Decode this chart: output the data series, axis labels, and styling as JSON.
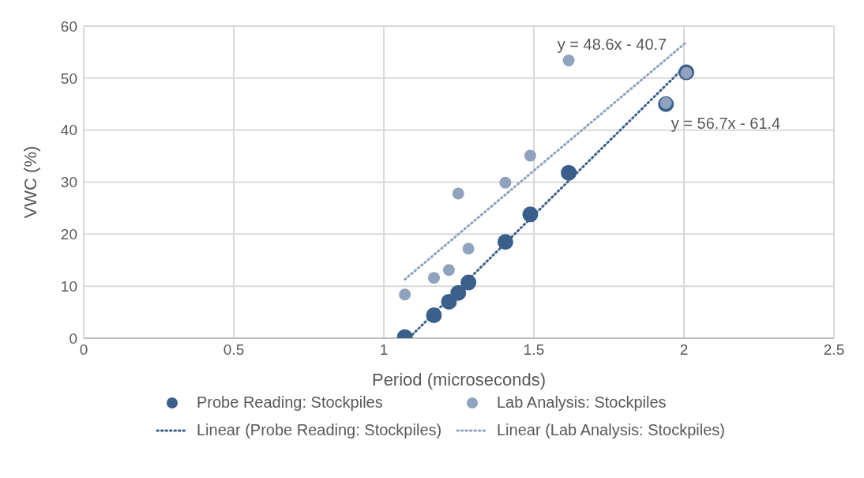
{
  "chart_data": {
    "type": "scatter",
    "xlabel": "Period (microseconds)",
    "ylabel": "VWC (%)",
    "xlim": [
      0,
      2.5
    ],
    "xticks": [
      0,
      0.5,
      1,
      1.5,
      2,
      2.5
    ],
    "ylim": [
      0,
      60
    ],
    "yticks": [
      0,
      10,
      20,
      30,
      40,
      50,
      60
    ],
    "grid": true,
    "legend": "bottom",
    "marker": "circle",
    "series": [
      {
        "name": "Probe Reading: Stockpiles",
        "color": "#3a5f8a",
        "x": [
          1.07,
          1.167,
          1.217,
          1.248,
          1.282,
          1.405,
          1.488,
          1.616,
          1.94,
          2.008
        ],
        "values": [
          0.2,
          4.4,
          7.0,
          8.7,
          10.7,
          18.5,
          23.8,
          31.8,
          45.0,
          51.1
        ]
      },
      {
        "name": "Lab Analysis: Stockpiles",
        "color": "#8fa2be",
        "x": [
          1.07,
          1.167,
          1.217,
          1.248,
          1.282,
          1.405,
          1.488,
          1.616,
          1.94,
          2.008
        ],
        "values": [
          8.4,
          11.6,
          13.1,
          27.8,
          17.2,
          29.9,
          35.1,
          53.4,
          45.2,
          51.0
        ]
      },
      {
        "name": "Linear (Probe Reading: Stockpiles)",
        "type": "line",
        "line_style": "dotted",
        "marker": "none",
        "color": "#3a5f8a",
        "x": [
          1.085,
          2.01
        ],
        "values": [
          0.1,
          52.6
        ]
      },
      {
        "name": "Linear (Lab Analysis: Stockpiles)",
        "type": "line",
        "line_style": "dotted",
        "marker": "none",
        "color": "#8fa2be",
        "x": [
          1.07,
          2.01
        ],
        "values": [
          11.3,
          57.0
        ]
      }
    ],
    "annotations": [
      "y = 48.6x - 40.7",
      "y = 56.7x - 61.4"
    ]
  }
}
